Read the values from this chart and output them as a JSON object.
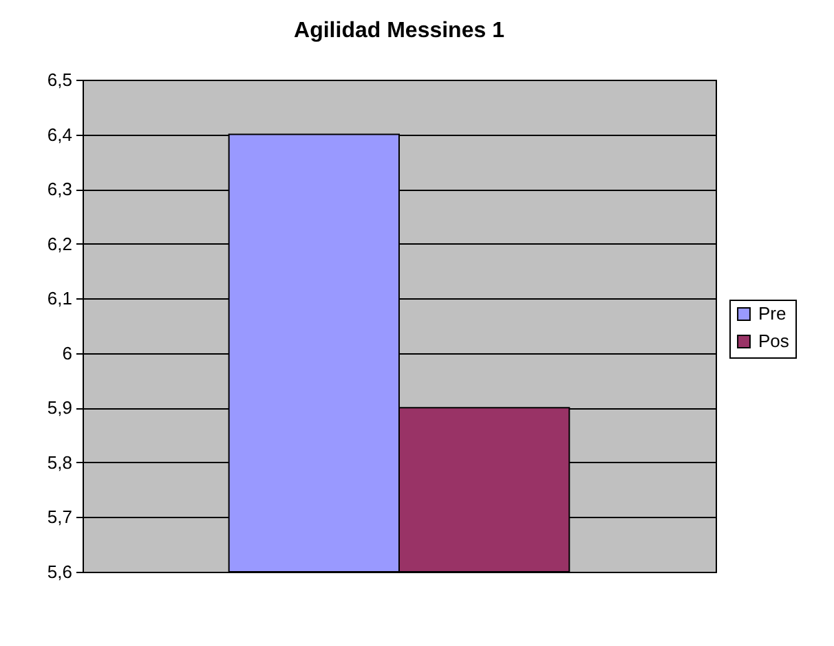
{
  "chart_data": {
    "type": "bar",
    "title": "Agilidad Messines 1",
    "categories": [
      null
    ],
    "series": [
      {
        "name": "Pre",
        "color": "#9999ff",
        "values": [
          6.4
        ]
      },
      {
        "name": "Pos",
        "color": "#993366",
        "values": [
          5.9
        ]
      }
    ],
    "ylim": [
      5.6,
      6.5
    ],
    "yticks": [
      {
        "value": 5.6,
        "label": "5,6"
      },
      {
        "value": 5.7,
        "label": "5,7"
      },
      {
        "value": 5.8,
        "label": "5,8"
      },
      {
        "value": 5.9,
        "label": "5,9"
      },
      6,
      {
        "value": 6.1,
        "label": "6,1"
      },
      {
        "value": 6.2,
        "label": "6,2"
      },
      {
        "value": 6.3,
        "label": "6,3"
      },
      {
        "value": 6.4,
        "label": "6,4"
      },
      {
        "value": 6.5,
        "label": "6,5"
      }
    ],
    "grid": "y",
    "legend": "right"
  }
}
